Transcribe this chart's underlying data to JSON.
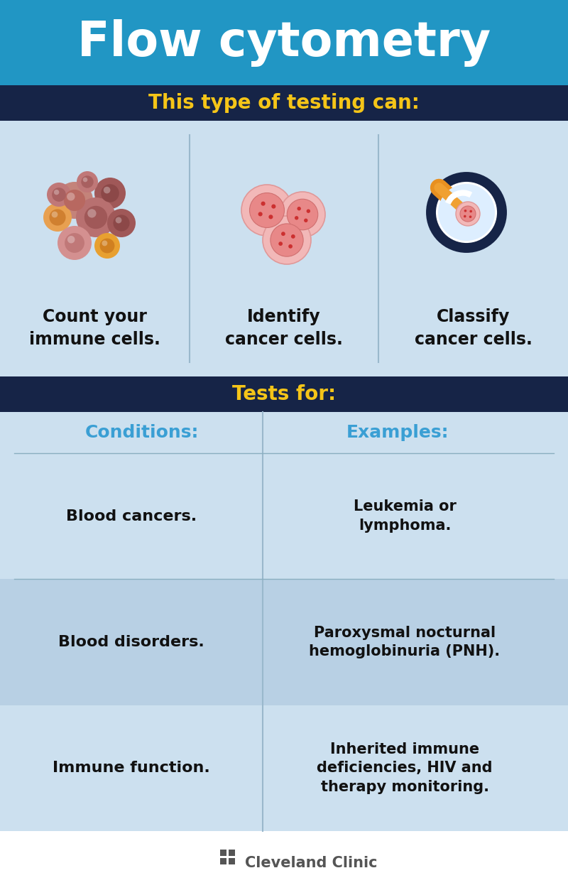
{
  "title": "Flow cytometry",
  "title_bg": "#2196C4",
  "title_color": "#ffffff",
  "subtitle1": "This type of testing can:",
  "subtitle1_bg": "#162447",
  "subtitle1_color": "#f5c518",
  "subtitle2": "Tests for:",
  "subtitle2_bg": "#162447",
  "subtitle2_color": "#f5c518",
  "panel_bg": "#cce0ef",
  "panel_bg_alt": "#b8d0e4",
  "white_bg": "#ffffff",
  "capabilities": [
    "Count your\nimmune cells.",
    "Identify\ncancer cells.",
    "Classify\ncancer cells."
  ],
  "conditions_header": "Conditions:",
  "examples_header": "Examples:",
  "header_color": "#3a9fd4",
  "conditions": [
    "Blood cancers.",
    "Blood disorders.",
    "Immune function."
  ],
  "examples": [
    "Leukemia or\nlymphoma.",
    "Paroxysmal nocturnal\nhemoglobinuria (PNH).",
    "Inherited immune\ndeficiencies, HIV and\ntherapy monitoring."
  ],
  "text_color": "#111111",
  "logo_color": "#555555",
  "divider_color": "#9ab8cc"
}
